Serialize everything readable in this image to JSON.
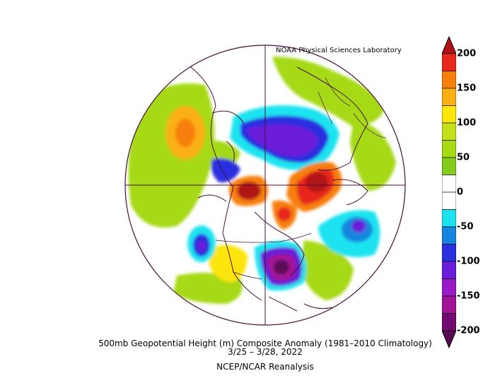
{
  "credit": "NOAA Physical Sciences Laboratory",
  "caption": {
    "line1": "500mb Geopotential Height (m) Composite Anomaly (1981–2010 Climatology)",
    "line2": "3/25 – 3/28, 2022",
    "line3": "NCEP/NCAR Reanalysis"
  },
  "colorbar": {
    "tick_labels": [
      "200",
      "150",
      "100",
      "50",
      "0",
      "-50",
      "-100",
      "-150",
      "-200"
    ],
    "bands": [
      {
        "from": 200,
        "to": 175,
        "color": "#e8281c"
      },
      {
        "from": 175,
        "to": 150,
        "color": "#f77f0b"
      },
      {
        "from": 150,
        "to": 125,
        "color": "#fbaf14"
      },
      {
        "from": 125,
        "to": 100,
        "color": "#fbe50a"
      },
      {
        "from": 100,
        "to": 75,
        "color": "#c3e01a"
      },
      {
        "from": 75,
        "to": 50,
        "color": "#a6d916"
      },
      {
        "from": 50,
        "to": 25,
        "color": "#83cc1c"
      },
      {
        "from": 25,
        "to": 0,
        "color": "#ffffff"
      },
      {
        "from": 0,
        "to": -25,
        "color": "#ffffff"
      },
      {
        "from": -25,
        "to": -50,
        "color": "#1ae3ef"
      },
      {
        "from": -50,
        "to": -75,
        "color": "#1585df"
      },
      {
        "from": -75,
        "to": -100,
        "color": "#2b2fe0"
      },
      {
        "from": -100,
        "to": -125,
        "color": "#6a1ed9"
      },
      {
        "from": -125,
        "to": -150,
        "color": "#9a19c9"
      },
      {
        "from": -150,
        "to": -175,
        "color": "#a21396"
      },
      {
        "from": -175,
        "to": -200,
        "color": "#720a72"
      }
    ],
    "above_color": "#b11313",
    "below_color": "#590854"
  },
  "colors": {
    "outline": "#4a0e3a",
    "background": "#ffffff"
  }
}
